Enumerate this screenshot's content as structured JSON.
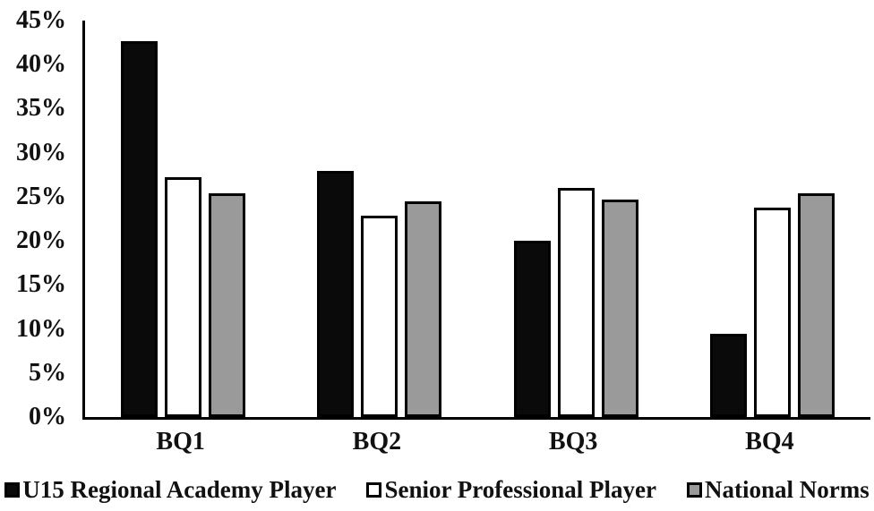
{
  "chart_data": {
    "type": "bar",
    "categories": [
      "BQ1",
      "BQ2",
      "BQ3",
      "BQ4"
    ],
    "series": [
      {
        "name": "U15 Regional Academy Player",
        "color": "#0a0a0a",
        "values": [
          42.7,
          27.9,
          20.0,
          9.5
        ]
      },
      {
        "name": "Senior Professional Player",
        "color": "#ffffff",
        "values": [
          27.2,
          22.9,
          26.0,
          23.8
        ]
      },
      {
        "name": "National Norms",
        "color": "#9a9a9a",
        "values": [
          25.4,
          24.5,
          24.7,
          25.4
        ]
      }
    ],
    "ylim": [
      0,
      45
    ],
    "ytick_step": 5,
    "ytick_labels": [
      "0%",
      "5%",
      "10%",
      "15%",
      "20%",
      "25%",
      "30%",
      "35%",
      "40%",
      "45%"
    ],
    "grid": "off",
    "legend_position": "bottom",
    "axis_color": "#000000",
    "bar_border_color": "#000000"
  }
}
